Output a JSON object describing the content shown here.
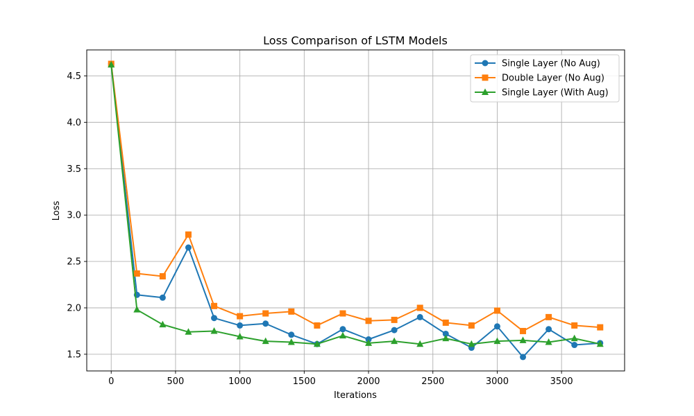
{
  "chart_data": {
    "type": "line",
    "title": "Loss Comparison of LSTM Models",
    "xlabel": "Iterations",
    "ylabel": "Loss",
    "xlim": [
      -190,
      3990
    ],
    "ylim": [
      1.32,
      4.78
    ],
    "xticks": [
      0,
      500,
      1000,
      1500,
      2000,
      2500,
      3000,
      3500
    ],
    "yticks": [
      1.5,
      2.0,
      2.5,
      3.0,
      3.5,
      4.0,
      4.5
    ],
    "grid": true,
    "legend_position": "top-right",
    "x": [
      0,
      200,
      400,
      600,
      800,
      1000,
      1200,
      1400,
      1600,
      1800,
      2000,
      2200,
      2400,
      2600,
      2800,
      3000,
      3200,
      3400,
      3600,
      3800
    ],
    "series": [
      {
        "name": "Single Layer (No Aug)",
        "color": "#1f77b4",
        "marker": "circle",
        "values": [
          4.63,
          2.14,
          2.11,
          2.65,
          1.89,
          1.81,
          1.83,
          1.71,
          1.61,
          1.77,
          1.66,
          1.76,
          1.9,
          1.72,
          1.57,
          1.8,
          1.47,
          1.77,
          1.6,
          1.62
        ]
      },
      {
        "name": "Double Layer (No Aug)",
        "color": "#ff7f0e",
        "marker": "square",
        "values": [
          4.63,
          2.37,
          2.34,
          2.79,
          2.02,
          1.91,
          1.94,
          1.96,
          1.81,
          1.94,
          1.86,
          1.87,
          2.0,
          1.84,
          1.81,
          1.97,
          1.75,
          1.9,
          1.81,
          1.79
        ]
      },
      {
        "name": "Single Layer (With Aug)",
        "color": "#2ca02c",
        "marker": "triangle",
        "values": [
          4.62,
          1.98,
          1.82,
          1.74,
          1.75,
          1.69,
          1.64,
          1.63,
          1.61,
          1.7,
          1.62,
          1.64,
          1.61,
          1.67,
          1.61,
          1.64,
          1.65,
          1.63,
          1.67,
          1.61
        ]
      }
    ]
  }
}
